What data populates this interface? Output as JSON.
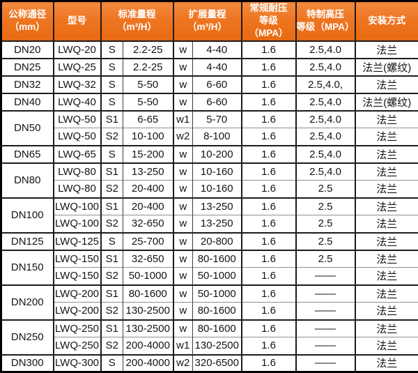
{
  "table": {
    "header": [
      {
        "line1": "公称通径",
        "line2": "（mm）"
      },
      {
        "line1": "型号"
      },
      {
        "line1": "标准量程",
        "line2": "（m³/H）"
      },
      {
        "line1": "扩展量程",
        "line2": "（m³/H）"
      },
      {
        "line1": "常规耐压",
        "line2": "等级（MPA）"
      },
      {
        "line1": "特制高压",
        "line2": "等级（MPA）"
      },
      {
        "line1": "安装方式"
      }
    ],
    "groups": [
      {
        "dn": "DN20",
        "rows": [
          {
            "model": "LWQ-20",
            "s": "S",
            "std": "2.2-25",
            "w": "w",
            "ext": "4-40",
            "reg": "1.6",
            "high": "2.5,4.0",
            "install": "法兰"
          }
        ]
      },
      {
        "dn": "DN25",
        "rows": [
          {
            "model": "LWQ-25",
            "s": "S",
            "std": "2.2-25",
            "w": "w",
            "ext": "4-40",
            "reg": "1.6",
            "high": "2.5,4.0",
            "install": "法兰(螺纹)"
          }
        ]
      },
      {
        "dn": "DN32",
        "rows": [
          {
            "model": "LWQ-32",
            "s": "S",
            "std": "5-50",
            "w": "w",
            "ext": "6-60",
            "reg": "1.6",
            "high": "2.5,4.0,",
            "install": "法兰"
          }
        ]
      },
      {
        "dn": "DN40",
        "rows": [
          {
            "model": "LWQ-40",
            "s": "S",
            "std": "5-50",
            "w": "w",
            "ext": "6-60",
            "reg": "1.6",
            "high": "2.5,4.0",
            "install": "法兰(螺纹)"
          }
        ]
      },
      {
        "dn": "DN50",
        "rows": [
          {
            "model": "LWQ-50",
            "s": "S1",
            "std": "6-65",
            "w": "w1",
            "ext": "5-70",
            "reg": "1.6",
            "high": "2.5,4.0",
            "install": "法兰"
          },
          {
            "model": "LWQ-50",
            "s": "S2",
            "std": "10-100",
            "w": "w2",
            "ext": "8-100",
            "reg": "1.6",
            "high": "2.5,4.0",
            "install": "法兰"
          }
        ]
      },
      {
        "dn": "DN65",
        "rows": [
          {
            "model": "LWQ-65",
            "s": "S",
            "std": "15-200",
            "w": "w",
            "ext": "10-200",
            "reg": "1.6",
            "high": "2.5,4.0",
            "install": "法兰"
          }
        ]
      },
      {
        "dn": "DN80",
        "rows": [
          {
            "model": "LWQ-80",
            "s": "S1",
            "std": "13-250",
            "w": "w",
            "ext": "10-160",
            "reg": "1.6",
            "high": "2.5,4.0",
            "install": "法兰"
          },
          {
            "model": "LWQ-80",
            "s": "S2",
            "std": "20-400",
            "w": "w",
            "ext": "10-160",
            "reg": "1.6",
            "high": "2.5",
            "install": "法兰"
          }
        ]
      },
      {
        "dn": "DN100",
        "rows": [
          {
            "model": "LWQ-100",
            "s": "S1",
            "std": "20-400",
            "w": "w",
            "ext": "13-250",
            "reg": "1.6",
            "high": "2.5",
            "install": "法兰"
          },
          {
            "model": "LWQ-100",
            "s": "S2",
            "std": "32-650",
            "w": "w",
            "ext": "13-250",
            "reg": "1.6",
            "high": "2.5",
            "install": "法兰"
          }
        ]
      },
      {
        "dn": "DN125",
        "rows": [
          {
            "model": "LWQ-125",
            "s": "S",
            "std": "25-700",
            "w": "w",
            "ext": "20-800",
            "reg": "1.6",
            "high": "2.5",
            "install": "法兰"
          }
        ]
      },
      {
        "dn": "DN150",
        "rows": [
          {
            "model": "LWQ-150",
            "s": "S1",
            "std": "32-650",
            "w": "w",
            "ext": "80-1600",
            "reg": "1.6",
            "high": "2.5",
            "install": "法兰"
          },
          {
            "model": "LWQ-150",
            "s": "S2",
            "std": "50-1000",
            "w": "w",
            "ext": "50-1000",
            "reg": "1.6",
            "high": "——",
            "install": "法兰"
          }
        ]
      },
      {
        "dn": "DN200",
        "rows": [
          {
            "model": "LWQ-200",
            "s": "S1",
            "std": "80-1600",
            "w": "w",
            "ext": "50-1000",
            "reg": "1.6",
            "high": "——",
            "install": "法兰"
          },
          {
            "model": "LWQ-200",
            "s": "S2",
            "std": "130-2500",
            "w": "w",
            "ext": "80-1600",
            "reg": "1.6",
            "high": "——",
            "install": "法兰"
          }
        ]
      },
      {
        "dn": "DN250",
        "rows": [
          {
            "model": "LWQ-250",
            "s": "S1",
            "std": "130-2500",
            "w": "w",
            "ext": "80-1600",
            "reg": "1.6",
            "high": "——",
            "install": "法兰"
          },
          {
            "model": "LWQ-250",
            "s": "S2",
            "std": "200-4000",
            "w": "w1",
            "ext": "130-2500",
            "reg": "1.6",
            "high": "——",
            "install": "法兰"
          }
        ]
      },
      {
        "dn": "DN300",
        "rows": [
          {
            "model": "LWQ-300",
            "s": "S",
            "std": "200-4000",
            "w": "w2",
            "ext": "320-6500",
            "reg": "1.6",
            "high": "——",
            "install": "法兰"
          }
        ]
      }
    ]
  }
}
